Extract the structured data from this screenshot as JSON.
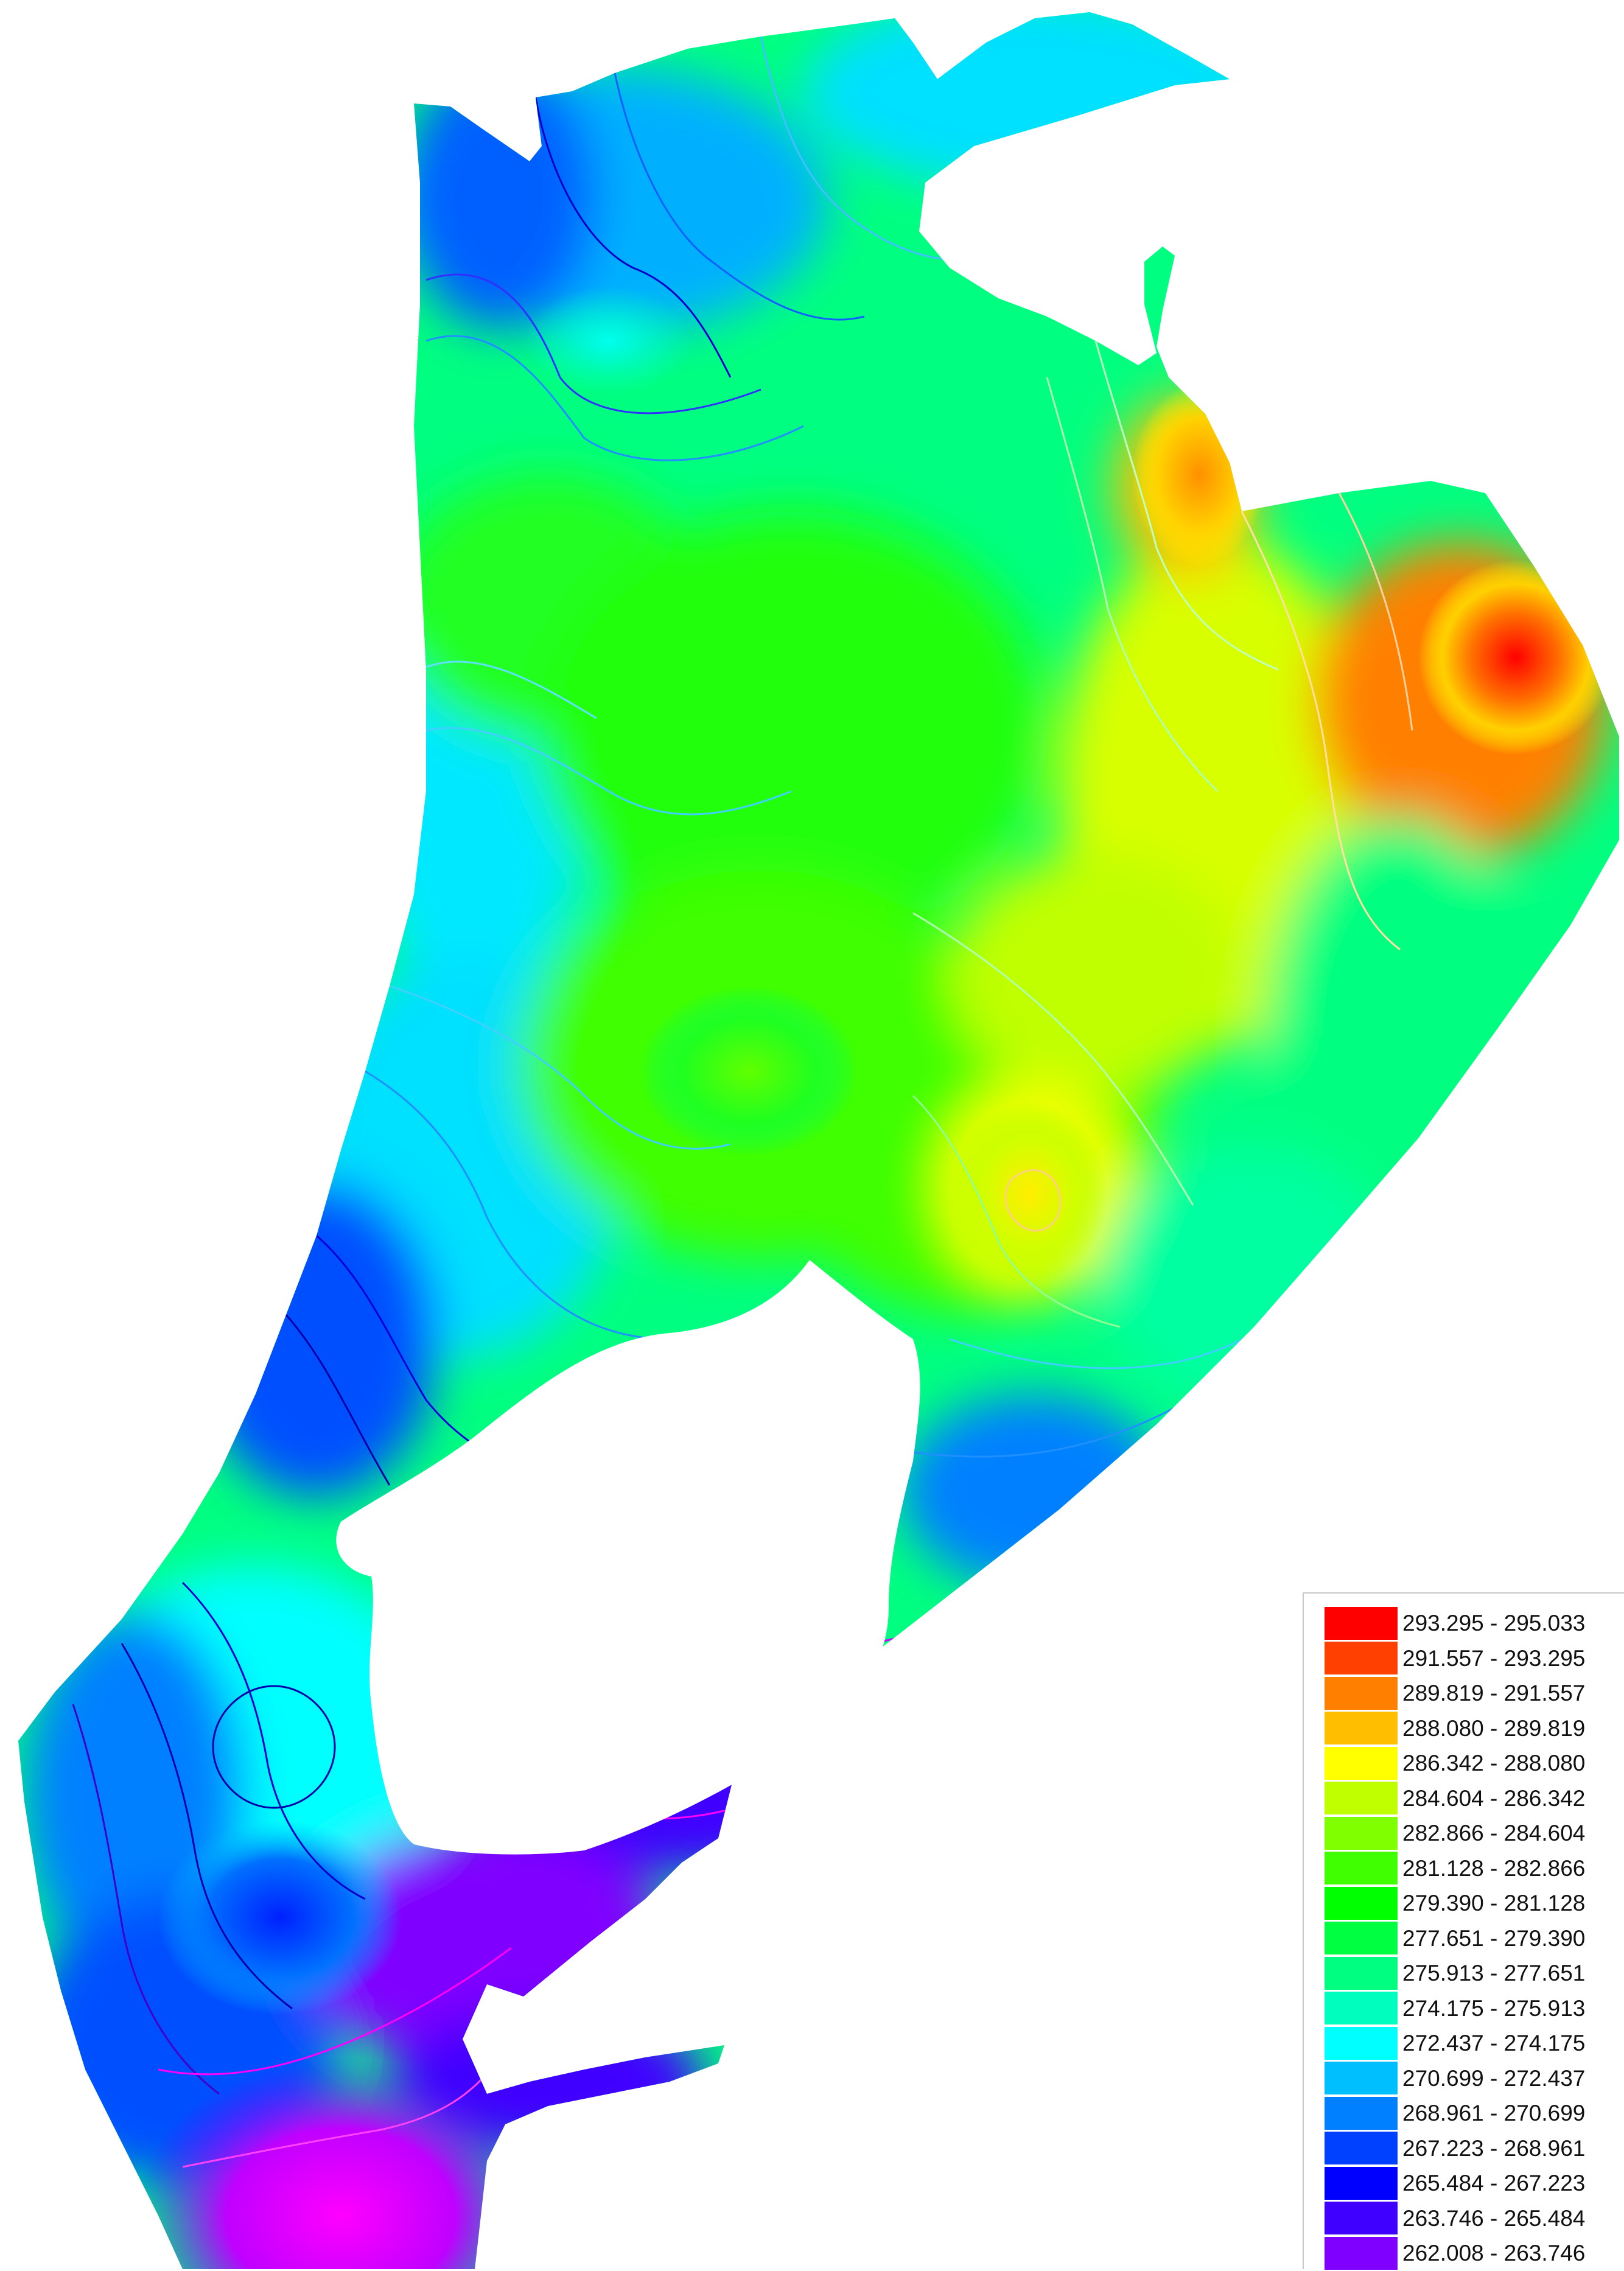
{
  "legend": {
    "classes": [
      {
        "range": "293.295 - 295.033",
        "color": "#ff0000"
      },
      {
        "range": "291.557 - 293.295",
        "color": "#ff4000"
      },
      {
        "range": "289.819 - 291.557",
        "color": "#ff8000"
      },
      {
        "range": "288.080 - 289.819",
        "color": "#ffbf00"
      },
      {
        "range": "286.342 - 288.080",
        "color": "#ffff00"
      },
      {
        "range": "284.604 - 286.342",
        "color": "#bfff00"
      },
      {
        "range": "282.866 - 284.604",
        "color": "#80ff00"
      },
      {
        "range": "281.128 - 282.866",
        "color": "#40ff00"
      },
      {
        "range": "279.390 - 281.128",
        "color": "#00ff00"
      },
      {
        "range": "277.651 - 279.390",
        "color": "#00ff40"
      },
      {
        "range": "275.913 - 277.651",
        "color": "#00ff80"
      },
      {
        "range": "274.175 - 275.913",
        "color": "#00ffbf"
      },
      {
        "range": "272.437 - 274.175",
        "color": "#00ffff"
      },
      {
        "range": "270.699 - 272.437",
        "color": "#00bfff"
      },
      {
        "range": "268.961 - 270.699",
        "color": "#0080ff"
      },
      {
        "range": "267.223 - 268.961",
        "color": "#0040ff"
      },
      {
        "range": "265.484 - 267.223",
        "color": "#0000ff"
      },
      {
        "range": "263.746 - 265.484",
        "color": "#4000ff"
      },
      {
        "range": "262.008 - 263.746",
        "color": "#8000ff"
      }
    ]
  },
  "map": {
    "outline_color": "#ffffff",
    "contour_color_low": "#0000aa",
    "contour_color_high": "#e8ffe8",
    "low_zone_color": "#ff00ff"
  }
}
